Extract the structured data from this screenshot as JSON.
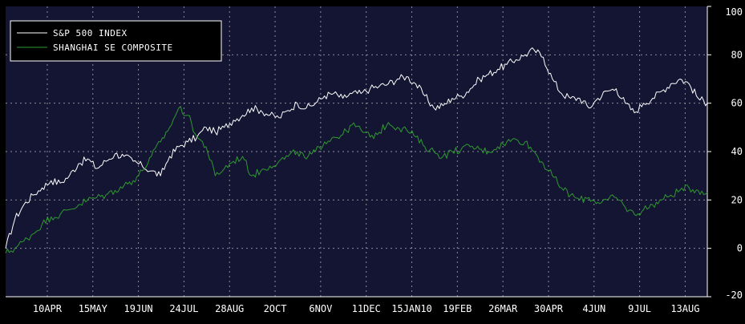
{
  "colors": {
    "background": "#000000",
    "plot_background": "#141433",
    "grid": "#8a8a9a",
    "axis_text": "#ffffff",
    "sp500": "#ffffff",
    "shanghai": "#2e9a2e"
  },
  "chart_data": {
    "type": "line",
    "title": "",
    "xlabel": "",
    "ylabel": "",
    "ylim": [
      -20,
      100
    ],
    "y_ticks": [
      -20,
      0,
      20,
      40,
      60,
      80,
      100
    ],
    "y_axis_side": "right",
    "grid": true,
    "legend_position": "top-left",
    "x_ticks": [
      "10APR",
      "15MAY",
      "19JUN",
      "24JUL",
      "28AUG",
      "2OCT",
      "6NOV",
      "11DEC",
      "15JAN10",
      "19FEB",
      "26MAR",
      "30APR",
      "4JUN",
      "9JUL",
      "13AUG"
    ],
    "x": [
      "2009-03-09",
      "2009-03-16",
      "2009-03-23",
      "2009-03-30",
      "2009-04-06",
      "2009-04-13",
      "2009-04-20",
      "2009-04-27",
      "2009-05-04",
      "2009-05-11",
      "2009-05-18",
      "2009-05-25",
      "2009-06-01",
      "2009-06-08",
      "2009-06-15",
      "2009-06-22",
      "2009-06-29",
      "2009-07-06",
      "2009-07-13",
      "2009-07-20",
      "2009-07-27",
      "2009-08-03",
      "2009-08-10",
      "2009-08-17",
      "2009-08-24",
      "2009-08-31",
      "2009-09-07",
      "2009-09-14",
      "2009-09-21",
      "2009-09-28",
      "2009-10-05",
      "2009-10-12",
      "2009-10-19",
      "2009-10-26",
      "2009-11-02",
      "2009-11-09",
      "2009-11-16",
      "2009-11-23",
      "2009-11-30",
      "2009-12-07",
      "2009-12-14",
      "2009-12-21",
      "2009-12-28",
      "2010-01-04",
      "2010-01-11",
      "2010-01-18",
      "2010-01-25",
      "2010-02-01",
      "2010-02-08",
      "2010-02-15",
      "2010-02-22",
      "2010-03-01",
      "2010-03-08",
      "2010-03-15",
      "2010-03-22",
      "2010-03-29",
      "2010-04-05",
      "2010-04-12",
      "2010-04-19",
      "2010-04-26",
      "2010-05-03",
      "2010-05-10",
      "2010-05-17",
      "2010-05-24",
      "2010-05-31",
      "2010-06-07",
      "2010-06-14",
      "2010-06-21",
      "2010-06-28",
      "2010-07-05",
      "2010-07-12",
      "2010-07-19",
      "2010-07-26",
      "2010-08-02",
      "2010-08-09",
      "2010-08-16",
      "2010-08-23",
      "2010-08-30"
    ],
    "series": [
      {
        "name": "S&P 500 INDEX",
        "values": [
          0,
          12,
          18,
          22,
          25,
          28,
          27,
          30,
          35,
          37,
          33,
          36,
          39,
          38,
          36,
          34,
          32,
          30,
          38,
          42,
          44,
          46,
          50,
          48,
          50,
          53,
          55,
          58,
          57,
          55,
          54,
          57,
          60,
          58,
          60,
          63,
          64,
          62,
          64,
          64,
          66,
          67,
          68,
          70,
          71,
          68,
          63,
          58,
          59,
          62,
          63,
          66,
          70,
          72,
          74,
          76,
          78,
          80,
          82,
          79,
          70,
          64,
          62,
          62,
          58,
          62,
          65,
          66,
          60,
          56,
          60,
          62,
          65,
          68,
          70,
          68,
          62,
          60
        ]
      },
      {
        "name": "SHANGHAI SE COMPOSITE",
        "values": [
          -2,
          0,
          3,
          6,
          10,
          13,
          14,
          16,
          18,
          20,
          21,
          22,
          24,
          26,
          28,
          32,
          38,
          44,
          50,
          58,
          55,
          46,
          42,
          30,
          33,
          36,
          38,
          30,
          32,
          34,
          36,
          38,
          40,
          37,
          40,
          44,
          46,
          47,
          51,
          49,
          46,
          48,
          52,
          50,
          49,
          46,
          42,
          40,
          38,
          40,
          41,
          42,
          41,
          40,
          42,
          44,
          45,
          44,
          40,
          35,
          30,
          25,
          22,
          20,
          21,
          19,
          20,
          21,
          17,
          14,
          16,
          18,
          20,
          22,
          24,
          25,
          24,
          23
        ]
      }
    ]
  }
}
